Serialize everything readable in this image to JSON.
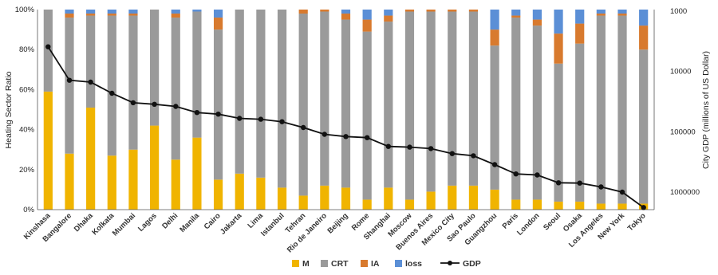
{
  "chart_data": {
    "type": "bar",
    "stacked": true,
    "categories": [
      "Kinshasa",
      "Bangalore",
      "Dhaka",
      "Kolkata",
      "Mumbai",
      "Lagos",
      "Delhi",
      "Manila",
      "Cairo",
      "Jakarta",
      "Lima",
      "Istanbul",
      "Tehran",
      "Rio de Janeiro",
      "Beijing",
      "Rome",
      "Shanghai",
      "Moscow",
      "Buenos Aires",
      "Mexico City",
      "Sao Paulo",
      "Guangzhou",
      "Paris",
      "London",
      "Seoul",
      "Osaka",
      "Los Angeles",
      "New York",
      "Tokyo"
    ],
    "series": [
      {
        "name": "M",
        "color": "#f0b400",
        "values": [
          0.59,
          0.28,
          0.51,
          0.27,
          0.3,
          0.42,
          0.25,
          0.36,
          0.15,
          0.18,
          0.16,
          0.11,
          0.07,
          0.12,
          0.11,
          0.05,
          0.11,
          0.05,
          0.09,
          0.12,
          0.12,
          0.1,
          0.05,
          0.05,
          0.04,
          0.04,
          0.03,
          0.03,
          0.03
        ]
      },
      {
        "name": "CRT",
        "color": "#9a9a9a",
        "values": [
          0.41,
          0.68,
          0.46,
          0.7,
          0.67,
          0.58,
          0.71,
          0.63,
          0.75,
          0.82,
          0.84,
          0.89,
          0.91,
          0.87,
          0.84,
          0.84,
          0.83,
          0.94,
          0.9,
          0.87,
          0.87,
          0.72,
          0.91,
          0.87,
          0.69,
          0.79,
          0.94,
          0.94,
          0.77
        ]
      },
      {
        "name": "IA",
        "color": "#d87a2e",
        "values": [
          0.0,
          0.02,
          0.01,
          0.01,
          0.01,
          0.0,
          0.02,
          0.0,
          0.06,
          0.0,
          0.0,
          0.0,
          0.02,
          0.01,
          0.03,
          0.06,
          0.03,
          0.01,
          0.01,
          0.01,
          0.01,
          0.08,
          0.01,
          0.03,
          0.15,
          0.1,
          0.01,
          0.01,
          0.12
        ]
      },
      {
        "name": "loss",
        "color": "#5b8fd6",
        "values": [
          0.0,
          0.02,
          0.02,
          0.02,
          0.02,
          0.0,
          0.02,
          0.01,
          0.04,
          0.0,
          0.0,
          0.0,
          0.0,
          0.0,
          0.02,
          0.05,
          0.03,
          0.0,
          0.0,
          0.0,
          0.0,
          0.1,
          0.03,
          0.05,
          0.12,
          0.07,
          0.02,
          0.02,
          0.08
        ]
      }
    ],
    "line_series": {
      "name": "GDP",
      "color": "#111111",
      "values": [
        3900,
        14000,
        15000,
        23000,
        33000,
        35000,
        38000,
        48000,
        51000,
        60000,
        62000,
        68000,
        85000,
        110000,
        120000,
        125000,
        175000,
        180000,
        190000,
        230000,
        250000,
        350000,
        500000,
        520000,
        700000,
        710000,
        820000,
        1000000,
        1800000
      ]
    },
    "ylabel_left": "Heating Sector Ratio",
    "ylabel_right": "City GDP (millions of US Dollar)",
    "y_left_ticks": [
      "100%",
      "80%",
      "60%",
      "40%",
      "20%",
      "0%"
    ],
    "y_left_range": [
      0,
      1
    ],
    "y_right_ticks": [
      "1000",
      "10000",
      "100000",
      "1000000"
    ],
    "y_right_range": [
      1000,
      1000000
    ],
    "y_right_scale": "log-reversed",
    "grid": false,
    "legend_position": "bottom"
  }
}
